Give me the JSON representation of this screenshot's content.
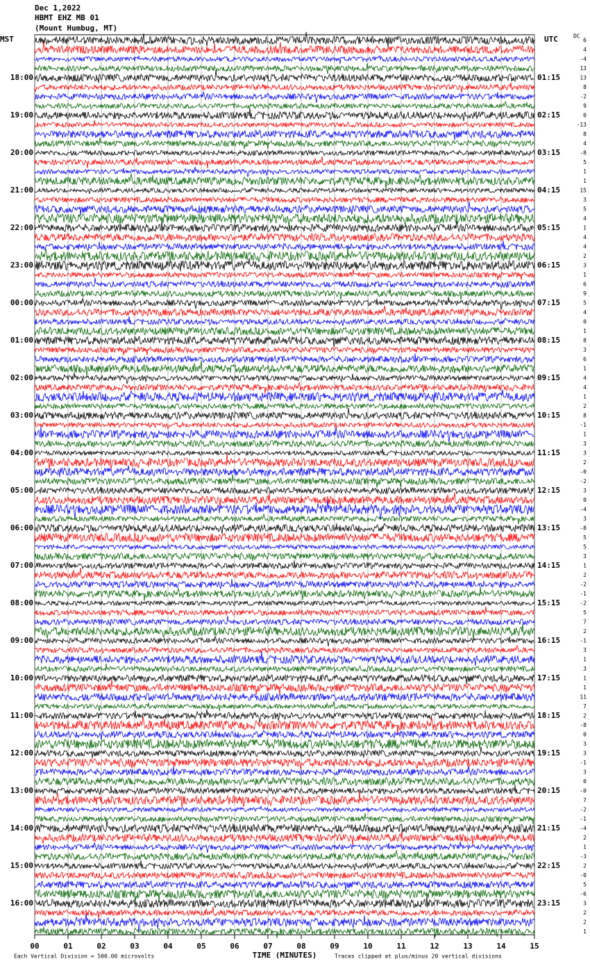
{
  "chart_data": {
    "type": "seismogram",
    "title_lines": [
      "Dec 1,2022",
      "HBMT EHZ MB 01",
      "(Mount Humbug, MT)"
    ],
    "left_axis_title": "MST",
    "right_axis_title": "UTC",
    "dc_title": "DC",
    "left_labels": [
      "18:00",
      "19:00",
      "20:00",
      "21:00",
      "22:00",
      "23:00",
      "00:00",
      "01:00",
      "02:00",
      "03:00",
      "04:00",
      "05:00",
      "06:00",
      "07:00",
      "08:00",
      "09:00",
      "10:00",
      "11:00",
      "12:00",
      "13:00",
      "14:00",
      "15:00",
      "16:00"
    ],
    "right_labels": [
      "01:15",
      "02:15",
      "03:15",
      "04:15",
      "05:15",
      "06:15",
      "07:15",
      "08:15",
      "09:15",
      "10:15",
      "11:15",
      "12:15",
      "13:15",
      "14:15",
      "15:15",
      "16:15",
      "17:15",
      "18:15",
      "19:15",
      "20:15",
      "21:15",
      "22:15",
      "23:15"
    ],
    "dc_offsets": [
      "6",
      "4",
      "-4",
      "13",
      "13",
      "8",
      "-2",
      "9",
      "0",
      "-13",
      "8",
      "4",
      "-8",
      "5",
      "1",
      "1",
      "15",
      "3",
      "5",
      "4",
      "1",
      "4",
      "4",
      "2",
      "3",
      "1",
      "6",
      "9",
      "5",
      "4",
      "0",
      "1",
      "8",
      "3",
      "6",
      "1",
      "4",
      "4",
      "1",
      "2",
      "8",
      "-1",
      "1",
      "3",
      "3",
      "2",
      "-0",
      "-2",
      "3",
      "0",
      "-4",
      "3",
      "-8",
      "5",
      "5",
      "3",
      "1",
      "2",
      "-2",
      "-1",
      "-2",
      "5",
      "7",
      "2",
      "-1",
      "3",
      "1",
      "3",
      "1",
      "1",
      "11",
      "7",
      "2",
      "-8",
      "0",
      "3",
      "3",
      "-1",
      "3",
      "0",
      "-0",
      "7",
      "-2",
      "-1",
      "-4",
      "2",
      "1",
      "-3",
      "2",
      "-0",
      "5",
      "-6",
      "3",
      "2",
      "2",
      "1"
    ],
    "trace_colors": [
      "#000000",
      "#ff0000",
      "#0000ff",
      "#006400"
    ],
    "xlim": [
      0,
      15
    ],
    "xticks": [
      {
        "value": 0,
        "label": "00"
      },
      {
        "value": 1,
        "label": "01"
      },
      {
        "value": 2,
        "label": "02"
      },
      {
        "value": 3,
        "label": "03"
      },
      {
        "value": 4,
        "label": "04"
      },
      {
        "value": 5,
        "label": "05"
      },
      {
        "value": 6,
        "label": "06"
      },
      {
        "value": 7,
        "label": "07"
      },
      {
        "value": 8,
        "label": "08"
      },
      {
        "value": 9,
        "label": "09"
      },
      {
        "value": 10,
        "label": "10"
      },
      {
        "value": 11,
        "label": "11"
      },
      {
        "value": 12,
        "label": "12"
      },
      {
        "value": 13,
        "label": "13"
      },
      {
        "value": 14,
        "label": "14"
      },
      {
        "value": 15,
        "label": "15"
      }
    ],
    "xlabel": "TIME (MINUTES)",
    "footnote_left": "Each Vertical Division =  500.00 microvolts",
    "footnote_right": "Traces clipped at plus/minus 20 vertical divisions",
    "grid": true
  }
}
